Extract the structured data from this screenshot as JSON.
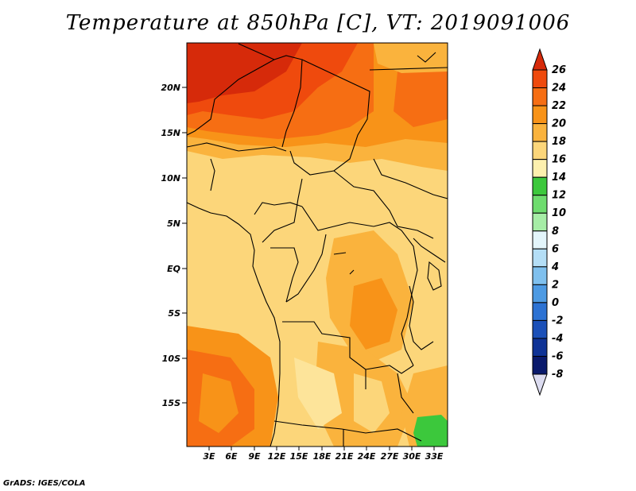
{
  "title": "Temperature at 850hPa [C], VT: 2019091006",
  "credit": "GrADS: IGES/COLA",
  "map": {
    "lat_ticks": [
      "20N",
      "15N",
      "10N",
      "5N",
      "EQ",
      "5S",
      "10S",
      "15S"
    ],
    "lon_ticks": [
      "3E",
      "6E",
      "9E",
      "12E",
      "15E",
      "18E",
      "21E",
      "24E",
      "27E",
      "30E",
      "33E"
    ]
  },
  "colorbar": {
    "levels": [
      "26",
      "24",
      "22",
      "20",
      "18",
      "16",
      "14",
      "12",
      "10",
      "8",
      "6",
      "4",
      "2",
      "0",
      "-2",
      "-4",
      "-6",
      "-8"
    ],
    "colors": [
      "#d62a0a",
      "#ef4a0d",
      "#f66e13",
      "#f89318",
      "#fab33d",
      "#fcd67a",
      "#fdf0ae",
      "#3cc83c",
      "#6edc6e",
      "#a6eda6",
      "#e3f5fb",
      "#b4def6",
      "#7fc0ee",
      "#4d9ae3",
      "#2c72d3",
      "#1b50b8",
      "#0f3396",
      "#0a1a6c",
      "#dcdcf0"
    ]
  }
}
